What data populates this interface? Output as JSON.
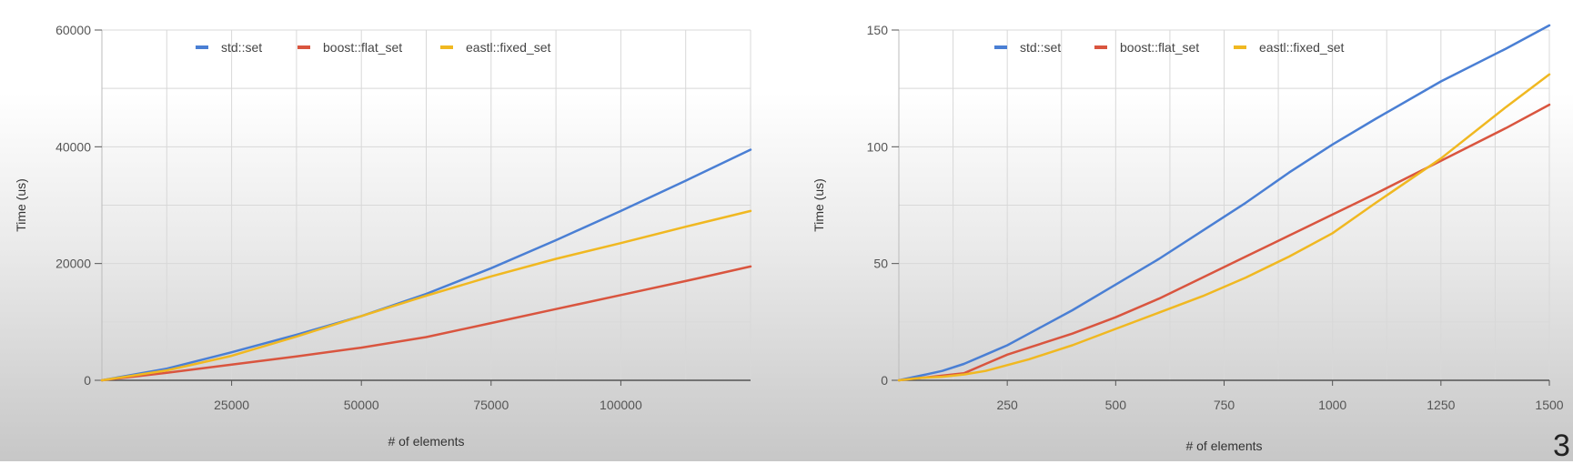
{
  "slide": {
    "page_number": "3"
  },
  "colors": {
    "std_set": "#4a7fd4",
    "boost_flat_set": "#d9553f",
    "eastl_fixed_set": "#f0b821"
  },
  "chart_data": [
    {
      "type": "line",
      "xlabel": "# of elements",
      "ylabel": "Time (us)",
      "xlim": [
        0,
        125000
      ],
      "ylim": [
        0,
        60000
      ],
      "xticks": [
        25000,
        50000,
        75000,
        100000
      ],
      "yticks": [
        0,
        20000,
        40000,
        60000
      ],
      "xtick_labels": [
        "25000",
        "50000",
        "75000",
        "100000"
      ],
      "ytick_labels": [
        "0",
        "20000",
        "40000",
        "60000"
      ],
      "grid": true,
      "legend_position": "top",
      "series": [
        {
          "name": "std::set",
          "color": "#4a7fd4",
          "x": [
            0,
            12500,
            25000,
            37500,
            50000,
            62500,
            75000,
            87500,
            100000,
            112500,
            125000
          ],
          "y": [
            0,
            2000,
            4800,
            7800,
            11000,
            14800,
            19200,
            24000,
            29000,
            34200,
            39500
          ]
        },
        {
          "name": "boost::flat_set",
          "color": "#d9553f",
          "x": [
            0,
            12500,
            25000,
            37500,
            50000,
            62500,
            75000,
            87500,
            100000,
            112500,
            125000
          ],
          "y": [
            0,
            1300,
            2700,
            4100,
            5600,
            7400,
            9800,
            12200,
            14600,
            17000,
            19500
          ]
        },
        {
          "name": "eastl::fixed_set",
          "color": "#f0b821",
          "x": [
            0,
            12500,
            25000,
            37500,
            50000,
            62500,
            75000,
            87500,
            100000,
            112500,
            125000
          ],
          "y": [
            0,
            1700,
            4200,
            7500,
            11000,
            14500,
            17800,
            20800,
            23500,
            26300,
            29000
          ]
        }
      ]
    },
    {
      "type": "line",
      "xlabel": "# of elements",
      "ylabel": "Time (us)",
      "xlim": [
        0,
        1500
      ],
      "ylim": [
        0,
        150
      ],
      "xticks": [
        250,
        500,
        750,
        1000,
        1250,
        1500
      ],
      "yticks": [
        0,
        50,
        100,
        150
      ],
      "xtick_labels": [
        "250",
        "500",
        "750",
        "1000",
        "1250",
        "1500"
      ],
      "ytick_labels": [
        "0",
        "50",
        "100",
        "150"
      ],
      "grid": true,
      "legend_position": "top",
      "series": [
        {
          "name": "std::set",
          "color": "#4a7fd4",
          "x": [
            0,
            50,
            100,
            150,
            200,
            250,
            300,
            400,
            500,
            600,
            700,
            800,
            900,
            1000,
            1100,
            1250,
            1400,
            1500
          ],
          "y": [
            0,
            2,
            4,
            7,
            11,
            15,
            20,
            30,
            41,
            52,
            64,
            76,
            89,
            101,
            112,
            128,
            142,
            152
          ]
        },
        {
          "name": "boost::flat_set",
          "color": "#d9553f",
          "x": [
            0,
            50,
            100,
            150,
            200,
            250,
            300,
            400,
            500,
            600,
            700,
            800,
            900,
            1000,
            1100,
            1250,
            1400,
            1500
          ],
          "y": [
            0,
            1,
            2,
            3,
            7,
            11,
            14,
            20,
            27,
            35,
            44,
            53,
            62,
            71,
            80,
            94,
            108,
            118
          ]
        },
        {
          "name": "eastl::fixed_set",
          "color": "#f0b821",
          "x": [
            0,
            50,
            100,
            150,
            200,
            250,
            300,
            400,
            500,
            600,
            700,
            800,
            900,
            1000,
            1100,
            1250,
            1400,
            1500
          ],
          "y": [
            0,
            1,
            1.5,
            2.5,
            4,
            6.5,
            9,
            15,
            22,
            29,
            36,
            44,
            53,
            63,
            76,
            95,
            117,
            131
          ]
        }
      ]
    }
  ]
}
